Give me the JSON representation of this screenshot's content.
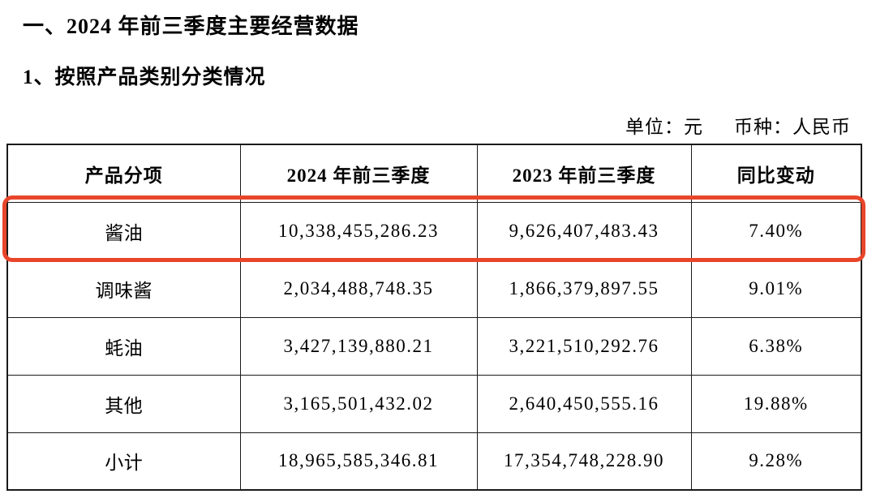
{
  "page": {
    "title": "一、2024 年前三季度主要经营数据",
    "subtitle": "1、按照产品类别分类情况",
    "unit_label": "单位：元",
    "currency_label": "币种：人民币"
  },
  "table": {
    "highlight_color": "#e8452a",
    "highlighted_row": "酱油",
    "columns": [
      "产品分项",
      "2024 年前三季度",
      "2023 年前三季度",
      "同比变动"
    ],
    "rows": [
      {
        "product": "酱油",
        "y2024": "10,338,455,286.23",
        "y2023": "9,626,407,483.43",
        "yoy": "7.40%"
      },
      {
        "product": "调味酱",
        "y2024": "2,034,488,748.35",
        "y2023": "1,866,379,897.55",
        "yoy": "9.01%"
      },
      {
        "product": "蚝油",
        "y2024": "3,427,139,880.21",
        "y2023": "3,221,510,292.76",
        "yoy": "6.38%"
      },
      {
        "product": "其他",
        "y2024": "3,165,501,432.02",
        "y2023": "2,640,450,555.16",
        "yoy": "19.88%"
      },
      {
        "product": "小计",
        "y2024": "18,965,585,346.81",
        "y2023": "17,354,748,228.90",
        "yoy": "9.28%"
      }
    ]
  }
}
